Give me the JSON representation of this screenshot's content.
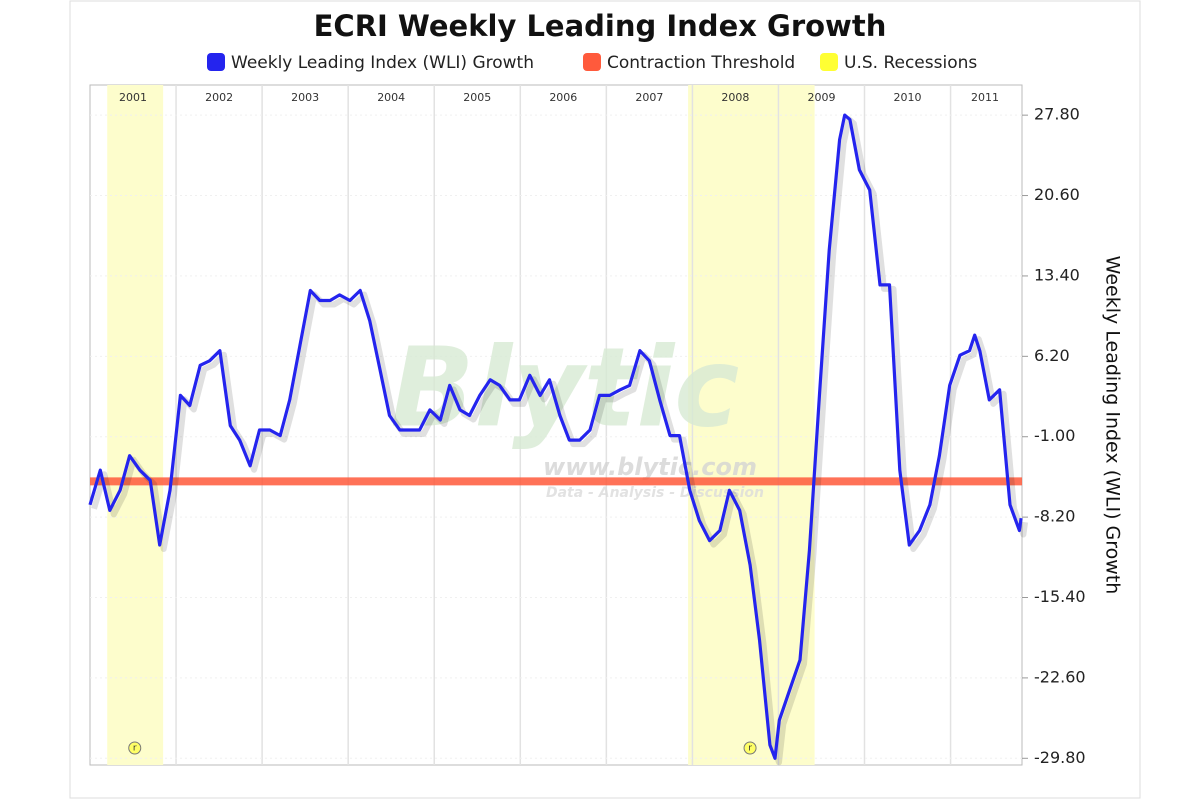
{
  "chart_data": {
    "type": "line",
    "title": "ECRI Weekly Leading Index Growth",
    "ylabel": "Weekly Leading Index (WLI) Growth",
    "xlim": [
      2001,
      2011.83
    ],
    "ylim": [
      -30.4,
      30.5
    ],
    "yticks": [
      {
        "value": 27.8,
        "label": "27.80"
      },
      {
        "value": 20.6,
        "label": "20.60"
      },
      {
        "value": 13.4,
        "label": "13.40"
      },
      {
        "value": 6.2,
        "label": "6.20"
      },
      {
        "value": -1,
        "label": "-1.00"
      },
      {
        "value": -8.2,
        "label": "-8.20"
      },
      {
        "value": -15.4,
        "label": "-15.40"
      },
      {
        "value": -22.6,
        "label": "-22.60"
      },
      {
        "value": -29.8,
        "label": "-29.80"
      }
    ],
    "xticks": [
      {
        "value": 2001.5,
        "label": "2001"
      },
      {
        "value": 2002.5,
        "label": "2002"
      },
      {
        "value": 2003.5,
        "label": "2003"
      },
      {
        "value": 2004.5,
        "label": "2004"
      },
      {
        "value": 2005.5,
        "label": "2005"
      },
      {
        "value": 2006.5,
        "label": "2006"
      },
      {
        "value": 2007.5,
        "label": "2007"
      },
      {
        "value": 2008.5,
        "label": "2008"
      },
      {
        "value": 2009.5,
        "label": "2009"
      },
      {
        "value": 2010.5,
        "label": "2010"
      },
      {
        "value": 2011.4,
        "label": "2011"
      }
    ],
    "xgrid": [
      2002,
      2003,
      2004,
      2005,
      2006,
      2007,
      2008,
      2009,
      2010,
      2011
    ],
    "grid": true,
    "x": [
      2001.0,
      2001.12,
      2001.23,
      2001.35,
      2001.46,
      2001.58,
      2001.7,
      2001.81,
      2001.93,
      2002.05,
      2002.16,
      2002.28,
      2002.39,
      2002.51,
      2002.63,
      2002.74,
      2002.86,
      2002.97,
      2003.09,
      2003.21,
      2003.32,
      2003.44,
      2003.56,
      2003.67,
      2003.79,
      2003.9,
      2004.02,
      2004.14,
      2004.25,
      2004.37,
      2004.48,
      2004.6,
      2004.72,
      2004.83,
      2004.95,
      2005.07,
      2005.18,
      2005.3,
      2005.41,
      2005.53,
      2005.65,
      2005.76,
      2005.88,
      2005.99,
      2006.11,
      2006.23,
      2006.34,
      2006.46,
      2006.57,
      2006.69,
      2006.81,
      2006.92,
      2007.04,
      2007.16,
      2007.27,
      2007.39,
      2007.5,
      2007.62,
      2007.74,
      2007.85,
      2007.97,
      2008.08,
      2008.2,
      2008.32,
      2008.43,
      2008.55,
      2008.67,
      2008.78,
      2008.9,
      2008.96,
      2009.01,
      2009.13,
      2009.25,
      2009.36,
      2009.48,
      2009.59,
      2009.71,
      2009.77,
      2009.83,
      2009.94,
      2010.06,
      2010.18,
      2010.29,
      2010.41,
      2010.52,
      2010.64,
      2010.76,
      2010.87,
      2010.99,
      2011.11,
      2011.22,
      2011.28,
      2011.34,
      2011.45,
      2011.57,
      2011.69,
      2011.8,
      2011.82
    ],
    "series": [
      {
        "name": "Weekly Leading Index (WLI) Growth",
        "color": "#2424ee",
        "values": [
          -7.1,
          -4.0,
          -7.6,
          -5.8,
          -2.7,
          -4.0,
          -4.9,
          -10.7,
          -5.8,
          2.7,
          1.8,
          5.4,
          5.8,
          6.7,
          0.0,
          -1.3,
          -3.6,
          -0.4,
          -0.4,
          -0.9,
          2.3,
          7.2,
          12.1,
          11.2,
          11.2,
          11.7,
          11.2,
          12.1,
          9.4,
          5.0,
          0.9,
          -0.4,
          -0.4,
          -0.4,
          1.4,
          0.5,
          3.6,
          1.4,
          0.9,
          2.7,
          4.1,
          3.6,
          2.3,
          2.3,
          4.5,
          2.7,
          4.1,
          0.9,
          -1.3,
          -1.3,
          -0.4,
          2.7,
          2.7,
          3.2,
          3.6,
          6.7,
          5.8,
          2.3,
          -0.9,
          -0.9,
          -5.8,
          -8.5,
          -10.3,
          -9.4,
          -5.8,
          -7.6,
          -12.5,
          -19.2,
          -28.6,
          -29.8,
          -26.4,
          -23.7,
          -21.0,
          -11.2,
          3.2,
          15.7,
          25.6,
          27.8,
          27.4,
          22.9,
          21.1,
          12.6,
          12.6,
          -4.0,
          -10.7,
          -9.4,
          -7.1,
          -2.7,
          3.6,
          6.3,
          6.7,
          8.1,
          6.7,
          2.3,
          3.2,
          -7.1,
          -9.4,
          -8.3
        ]
      }
    ],
    "threshold": {
      "name": "Contraction Threshold",
      "color": "#ff5a3c",
      "value": -5
    },
    "recessions": {
      "name": "U.S. Recessions",
      "color": "#ffff33",
      "fill": "#fdfdcc",
      "ranges": [
        [
          2001.2,
          2001.85
        ],
        [
          2007.95,
          2009.42
        ]
      ]
    },
    "annotations": [
      {
        "x": 2001.52,
        "label": "r"
      },
      {
        "x": 2008.67,
        "label": "r"
      }
    ],
    "watermark": [
      "Blytic",
      "www.blytic.com",
      "Data - Analysis - Discussion"
    ]
  }
}
